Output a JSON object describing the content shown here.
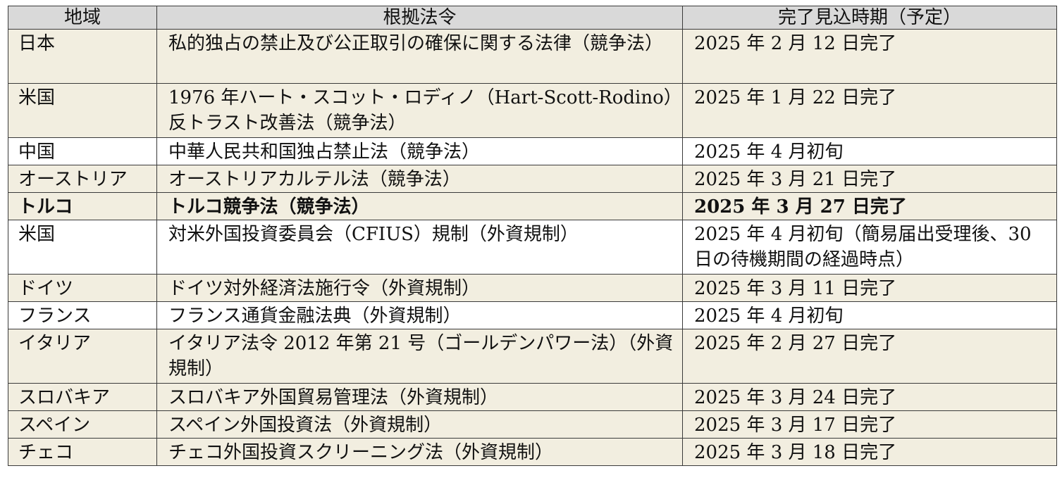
{
  "table": {
    "headers": [
      "地域",
      "根拠法令",
      "完了見込時期（予定）"
    ],
    "rows": [
      {
        "region": "日本",
        "law": "私的独占の禁止及び公正取引の確保に関する法律（競争法）",
        "timing": "2025 年 2 月 12 日完了"
      },
      {
        "region": "米国",
        "law": "1976 年ハート・スコット・ロディノ（Hart-Scott-Rodino）反トラスト改善法（競争法）",
        "timing": "2025 年 1 月 22 日完了"
      },
      {
        "region": "中国",
        "law": "中華人民共和国独占禁止法（競争法）",
        "timing": "2025 年 4 月初旬"
      },
      {
        "region": "オーストリア",
        "law": "オーストリアカルテル法（競争法）",
        "timing": "2025 年 3 月 21 日完了"
      },
      {
        "region": "トルコ",
        "law": "トルコ競争法（競争法）",
        "timing": "2025 年 3 月 27 日完了"
      },
      {
        "region": "米国",
        "law": "対米外国投資委員会（CFIUS）規制（外資規制）",
        "timing": "2025 年 4 月初旬（簡易届出受理後、30 日の待機期間の経過時点）"
      },
      {
        "region": "ドイツ",
        "law": "ドイツ対外経済法施行令（外資規制）",
        "timing": "2025 年 3 月 11 日完了"
      },
      {
        "region": "フランス",
        "law": "フランス通貨金融法典（外資規制）",
        "timing": "2025 年 4 月初旬"
      },
      {
        "region": "イタリア",
        "law": "イタリア法令 2012 年第 21 号（ゴールデンパワー法）（外資規制）",
        "timing": "2025 年 2 月 27 日完了"
      },
      {
        "region": "スロバキア",
        "law": "スロバキア外国貿易管理法（外資規制）",
        "timing": "2025 年 3 月 24 日完了"
      },
      {
        "region": "スペイン",
        "law": "スペイン外国投資法（外資規制）",
        "timing": "2025 年 3 月 17 日完了"
      },
      {
        "region": "チェコ",
        "law": "チェコ外国投資スクリーニング法（外資規制）",
        "timing": "2025 年 3 月 18 日完了"
      }
    ]
  },
  "colors": {
    "header_bg": "#d9d9d9",
    "shaded_row_bg": "#f2eee0",
    "border": "#3a3a3a"
  }
}
